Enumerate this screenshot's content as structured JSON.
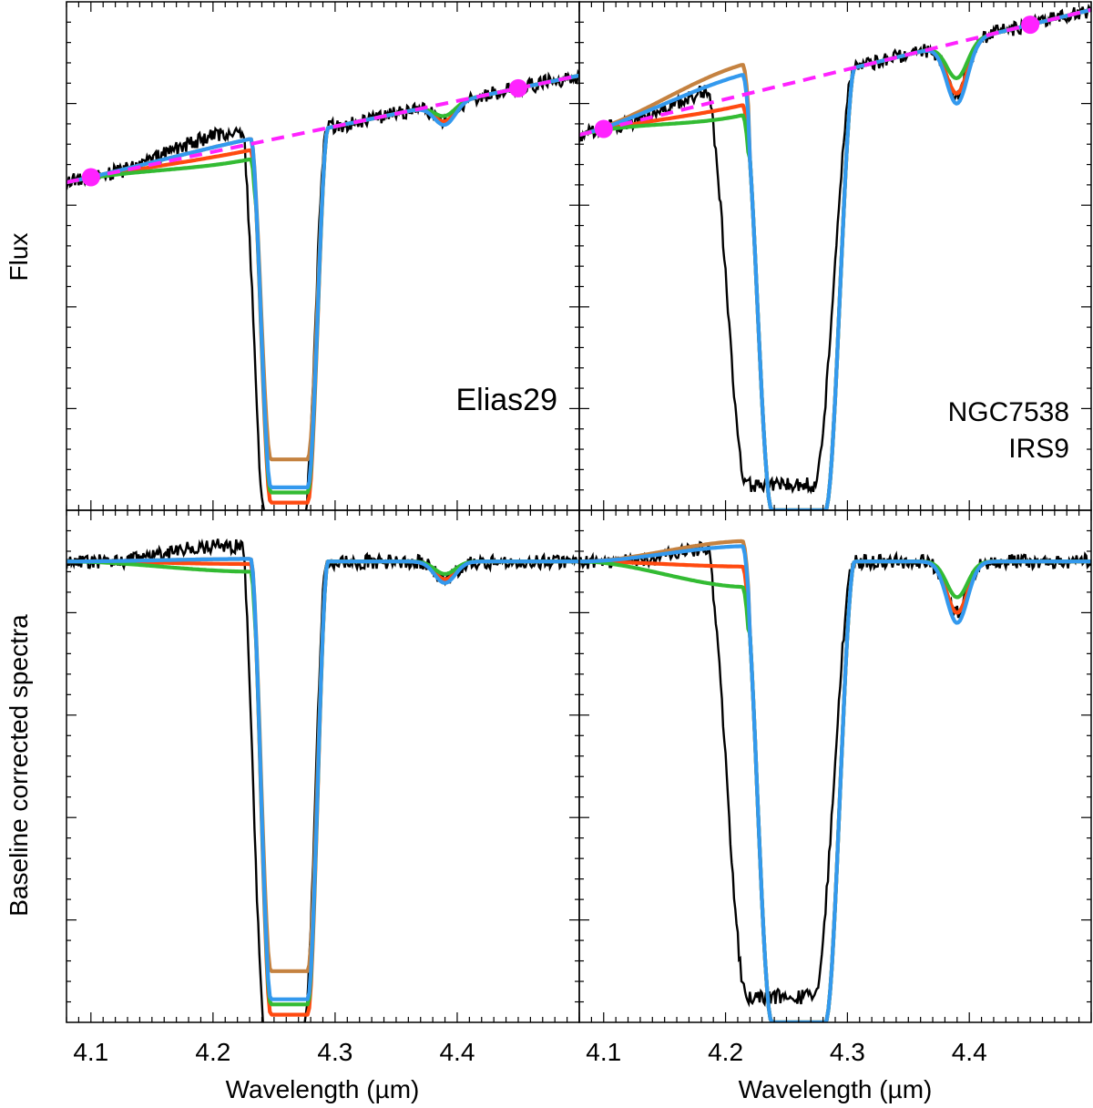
{
  "chart_data": {
    "type": "line",
    "xlabel": "Wavelength (µm)",
    "ylabel_top": "Flux",
    "ylabel_bottom": "Baseline corrected spectra",
    "xlim": [
      4.08,
      4.5
    ],
    "x_ticks": [
      "4.1",
      "4.2",
      "4.3",
      "4.4"
    ],
    "x_tick_values": [
      4.1,
      4.2,
      4.3,
      4.4
    ],
    "colors": {
      "observed": "#000000",
      "model_brown": "#c58240",
      "model_red": "#ff4a10",
      "model_green": "#33bb33",
      "model_blue": "#3399ee",
      "baseline": "#ff22ff"
    },
    "panels": [
      {
        "id": "elias29-flux",
        "label_lines": [
          "Elias29"
        ],
        "ylim": [
          0,
          1
        ],
        "kind": "flux",
        "obs_noise": 0.012,
        "continuum": {
          "x1": 4.1,
          "y1": 0.655,
          "x2": 4.45,
          "y2": 0.83
        },
        "anchor_points": [
          {
            "x": 4.1,
            "y": 0.655
          },
          {
            "x": 4.45,
            "y": 0.83
          }
        ],
        "model_left": {
          "brown": 0.01,
          "red": -0.012,
          "green": -0.03,
          "blue": 0.01
        },
        "band": {
          "x1": 4.235,
          "x2": 4.29,
          "lo": 0.25,
          "hi": 0.3
        },
        "band_min": {
          "brown": 0.1,
          "red": 0.015,
          "green": 0.035,
          "blue": 0.045
        },
        "second_dip": {
          "x": 4.39,
          "depth": 0.035
        },
        "obs_band_shift": -0.008,
        "obs_floor": -0.02
      },
      {
        "id": "ngc7538-flux",
        "label_lines": [
          "NGC7538",
          "IRS9"
        ],
        "ylim": [
          0,
          1
        ],
        "kind": "flux",
        "obs_noise": 0.012,
        "continuum": {
          "x1": 4.1,
          "y1": 0.75,
          "x2": 4.45,
          "y2": 0.955
        },
        "anchor_points": [
          {
            "x": 4.1,
            "y": 0.75
          },
          {
            "x": 4.45,
            "y": 0.955
          }
        ],
        "model_left": {
          "brown": 0.06,
          "red": -0.02,
          "green": -0.04,
          "blue": 0.04
        },
        "band": {
          "x1": 4.22,
          "x2": 4.3,
          "lo": 0.25,
          "hi": 0.3
        },
        "band_min": {
          "brown": 0.0,
          "red": 0.0,
          "green": 0.0,
          "blue": 0.0
        },
        "second_dip": {
          "x": 4.39,
          "depth": 0.1
        },
        "obs_band_shift": -0.03,
        "obs_floor": 0.05
      },
      {
        "id": "elias29-corrected",
        "label_lines": [],
        "ylim": [
          0,
          1
        ],
        "kind": "corrected",
        "obs_noise": 0.012,
        "continuum": {
          "x1": 4.08,
          "y1": 0.9,
          "x2": 4.5,
          "y2": 0.9
        },
        "anchor_points": [],
        "model_left": {
          "brown": 0.005,
          "red": -0.005,
          "green": -0.02,
          "blue": 0.005
        },
        "band": {
          "x1": 4.235,
          "x2": 4.29,
          "lo": 0.25,
          "hi": 0.3
        },
        "band_min": {
          "brown": 0.1,
          "red": 0.015,
          "green": 0.035,
          "blue": 0.045
        },
        "second_dip": {
          "x": 4.39,
          "depth": 0.035
        },
        "obs_band_shift": -0.008,
        "obs_floor": -0.02
      },
      {
        "id": "ngc7538-corrected",
        "label_lines": [],
        "ylim": [
          0,
          1
        ],
        "kind": "corrected",
        "obs_noise": 0.012,
        "continuum": {
          "x1": 4.08,
          "y1": 0.9,
          "x2": 4.5,
          "y2": 0.9
        },
        "anchor_points": [],
        "model_left": {
          "brown": 0.04,
          "red": -0.01,
          "green": -0.05,
          "blue": 0.03
        },
        "band": {
          "x1": 4.22,
          "x2": 4.3,
          "lo": 0.25,
          "hi": 0.3
        },
        "band_min": {
          "brown": 0.0,
          "red": 0.0,
          "green": 0.0,
          "blue": 0.0
        },
        "second_dip": {
          "x": 4.39,
          "depth": 0.1
        },
        "obs_band_shift": -0.03,
        "obs_floor": 0.05
      }
    ]
  }
}
